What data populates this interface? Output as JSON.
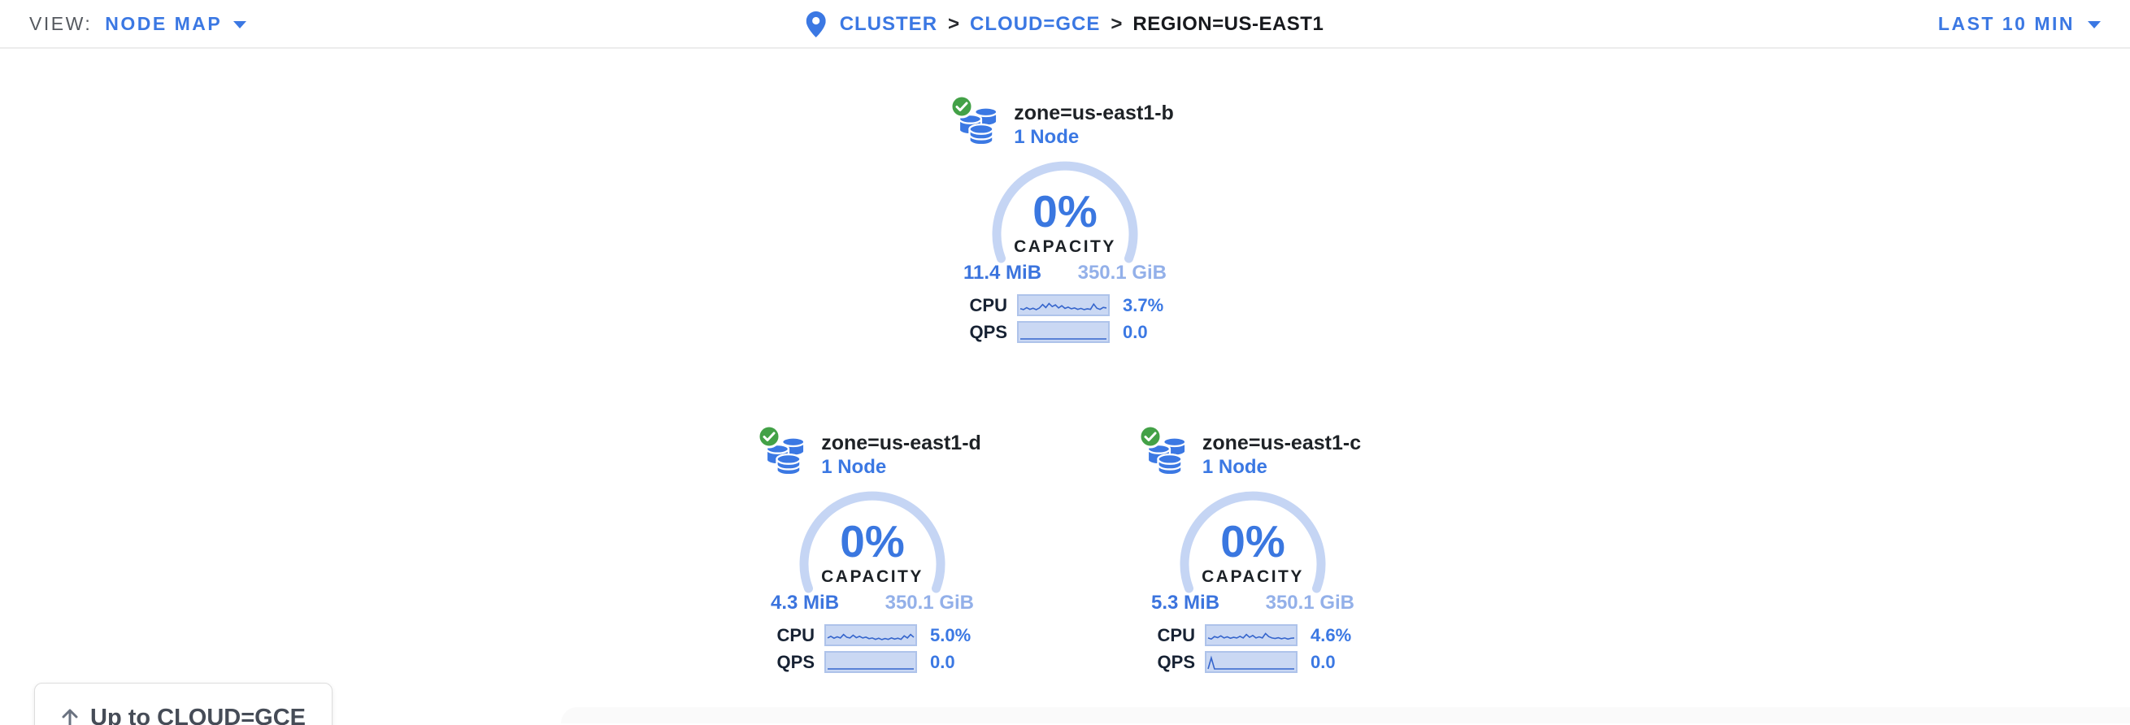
{
  "header": {
    "view_label": "VIEW:",
    "view_value": "NODE MAP",
    "time_range": "LAST 10 MIN",
    "breadcrumb": {
      "separator": ">",
      "cluster": "CLUSTER",
      "cloud": "CLOUD=GCE",
      "region": "REGION=US-EAST1"
    }
  },
  "map": {
    "up_button_label": "Up to CLOUD=GCE",
    "capacity_label": "CAPACITY",
    "cpu_label": "CPU",
    "qps_label": "QPS"
  },
  "zones": [
    {
      "name": "zone=us-east1-b",
      "nodes": "1 Node",
      "capacity_pct": "0%",
      "capacity_used": "11.4 MiB",
      "capacity_total": "350.1 GiB",
      "cpu_value": "3.7%",
      "qps_value": "0.0",
      "cpu_spark": [
        0.25,
        0.18,
        0.32,
        0.2,
        0.28,
        0.18,
        0.3,
        0.55,
        0.33,
        0.62,
        0.4,
        0.52,
        0.3,
        0.46,
        0.27,
        0.36,
        0.24,
        0.3,
        0.2,
        0.27,
        0.18,
        0.24,
        0.2,
        0.58,
        0.28,
        0.2,
        0.34,
        0.3
      ],
      "qps_spark": [
        0,
        0,
        0,
        0,
        0,
        0,
        0,
        0,
        0,
        0,
        0,
        0,
        0,
        0,
        0,
        0,
        0,
        0,
        0,
        0,
        0,
        0,
        0,
        0,
        0,
        0,
        0,
        0
      ]
    },
    {
      "name": "zone=us-east1-d",
      "nodes": "1 Node",
      "capacity_pct": "0%",
      "capacity_used": "4.3 MiB",
      "capacity_total": "350.1 GiB",
      "cpu_value": "5.0%",
      "qps_value": "0.0",
      "cpu_spark": [
        0.3,
        0.42,
        0.28,
        0.38,
        0.3,
        0.55,
        0.35,
        0.3,
        0.5,
        0.32,
        0.42,
        0.3,
        0.36,
        0.25,
        0.3,
        0.2,
        0.28,
        0.18,
        0.26,
        0.2,
        0.3,
        0.22,
        0.28,
        0.2,
        0.45,
        0.3,
        0.55,
        0.35
      ],
      "qps_spark": [
        0,
        0,
        0,
        0,
        0,
        0,
        0,
        0,
        0,
        0,
        0,
        0,
        0,
        0,
        0,
        0,
        0,
        0,
        0,
        0,
        0,
        0,
        0,
        0,
        0,
        0,
        0,
        0
      ]
    },
    {
      "name": "zone=us-east1-c",
      "nodes": "1 Node",
      "capacity_pct": "0%",
      "capacity_used": "5.3 MiB",
      "capacity_total": "350.1 GiB",
      "cpu_value": "4.6%",
      "qps_value": "0.0",
      "cpu_spark": [
        0.3,
        0.22,
        0.4,
        0.32,
        0.45,
        0.3,
        0.38,
        0.28,
        0.35,
        0.3,
        0.42,
        0.3,
        0.55,
        0.35,
        0.48,
        0.3,
        0.38,
        0.3,
        0.62,
        0.4,
        0.3,
        0.26,
        0.32,
        0.24,
        0.3,
        0.22,
        0.28,
        0.3
      ],
      "qps_spark": [
        0,
        0.8,
        0,
        0,
        0,
        0,
        0,
        0,
        0,
        0,
        0,
        0,
        0,
        0,
        0,
        0,
        0,
        0,
        0,
        0,
        0,
        0,
        0,
        0,
        0,
        0,
        0,
        0
      ]
    }
  ],
  "colors": {
    "accent_blue": "#3b78e3",
    "arc_blue": "#c5d5f4",
    "spark_line": "#3565cc",
    "spark_fill": "#cad8f3",
    "healthy_green": "#43a147"
  }
}
